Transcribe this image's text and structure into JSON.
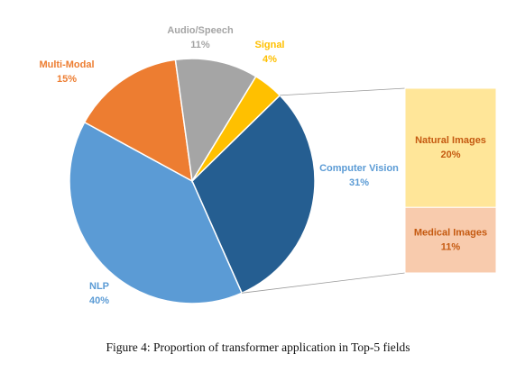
{
  "chart_data": {
    "type": "pie",
    "slices": [
      {
        "label": "Computer Vision",
        "value": 31,
        "value_text": "31%",
        "color": "#255E91"
      },
      {
        "label": "NLP",
        "value": 40,
        "value_text": "40%",
        "color": "#5B9BD5"
      },
      {
        "label": "Multi-Modal",
        "value": 15,
        "value_text": "15%",
        "color": "#ED7D31"
      },
      {
        "label": "Audio/Speech",
        "value": 11,
        "value_text": "11%",
        "color": "#A5A5A5"
      },
      {
        "label": "Signal",
        "value": 4,
        "value_text": "4%",
        "color": "#FFC000"
      }
    ],
    "breakdown": {
      "of": "Computer Vision",
      "parts": [
        {
          "label": "Natural Images",
          "value": 20,
          "value_text": "20%",
          "color": "#FFE699"
        },
        {
          "label": "Medical Images",
          "value": 11,
          "value_text": "11%",
          "color": "#F8CBAD"
        }
      ]
    }
  },
  "caption": "Figure 4: Proportion of transformer application in Top-5 fields"
}
